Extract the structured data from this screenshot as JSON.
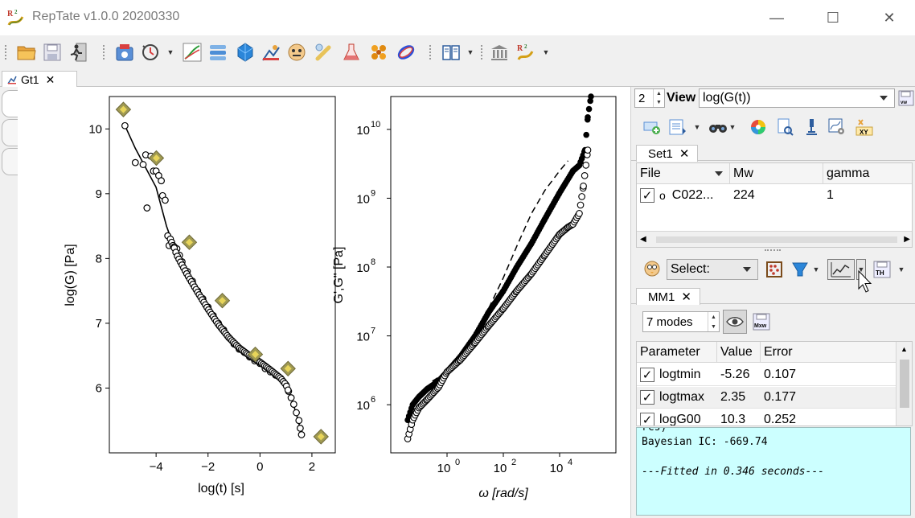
{
  "window": {
    "title": "RepTate v1.0.0 20200330",
    "minimize_glyph": "—",
    "maximize_glyph": "☐",
    "close_glyph": "✕"
  },
  "toolbar": {
    "icons": [
      "open-folder-icon",
      "save-icon",
      "exit-icon",
      "tts-app-icon",
      "reptation-app-icon",
      "lve-app-icon",
      "creep-app-icon",
      "crystal-app-icon",
      "react-app-icon",
      "mask-app-icon",
      "dielectric-app-icon",
      "flask-app-icon",
      "molecule-app-icon",
      "ellipse-app-icon",
      "manual-icon",
      "museum-icon",
      "logo-menu-icon"
    ]
  },
  "main_tab": {
    "label": "Gt1",
    "close": "✕"
  },
  "plots": {
    "left": {
      "xlabel": "log(t) [s]",
      "ylabel": "log(G) [Pa]",
      "xticks": [
        "−4",
        "−2",
        "0",
        "2"
      ],
      "yticks": [
        "6",
        "7",
        "8",
        "9",
        "10"
      ]
    },
    "right": {
      "xlabel": "ω [rad/s]",
      "ylabel": "G',G\" [Pa]",
      "xtick_base": "10",
      "xtick_exp": [
        "0",
        "2",
        "4"
      ],
      "ytick_base": "10",
      "ytick_exp": [
        "6",
        "7",
        "8",
        "9",
        "10"
      ]
    }
  },
  "chart_data": [
    {
      "type": "scatter",
      "title": "",
      "xlabel": "log(t) [s]",
      "ylabel": "log(G) [Pa]",
      "xlim": [
        -5.8,
        2.9
      ],
      "ylim": [
        5.0,
        10.5
      ],
      "grid": false,
      "series": [
        {
          "marker": "open-circle",
          "x": [
            -5.2,
            -4.8,
            -4.5,
            -4.4,
            -4.35,
            -4.2,
            -4.1,
            -4.0,
            -3.9,
            -3.8,
            -3.75,
            -3.65,
            -3.55,
            -3.5,
            -3.45,
            -3.4,
            -3.35,
            -3.3,
            -3.2,
            -3.1,
            -3.0,
            -2.8,
            -2.6,
            -2.4,
            -2.2,
            -2.0,
            -1.8,
            -1.6,
            -1.4,
            -1.2,
            -1.0,
            -0.8,
            -0.6,
            -0.4,
            -0.2,
            0.0,
            0.2,
            0.4,
            0.6,
            0.8,
            1.0,
            1.1,
            1.2,
            1.3,
            1.4,
            1.5,
            1.55,
            1.6
          ],
          "y": [
            10.05,
            9.48,
            9.45,
            9.6,
            8.78,
            9.58,
            9.35,
            9.35,
            9.28,
            9.2,
            8.97,
            8.9,
            8.35,
            8.2,
            8.3,
            8.25,
            8.2,
            8.18,
            8.15,
            8.05,
            7.95,
            7.8,
            7.65,
            7.5,
            7.38,
            7.25,
            7.12,
            7.0,
            6.9,
            6.78,
            6.68,
            6.6,
            6.55,
            6.48,
            6.42,
            6.38,
            6.3,
            6.25,
            6.2,
            6.15,
            6.05,
            5.95,
            5.85,
            5.75,
            5.62,
            5.5,
            5.38,
            5.28
          ]
        },
        {
          "name": "",
          "marker": "line",
          "x": [
            -5.2,
            -4.8,
            -4.4,
            -4.0,
            -3.6,
            -3.2,
            -2.8,
            -2.4,
            -2.0,
            -1.6,
            -1.2,
            -0.8,
            -0.4,
            0.0,
            0.4,
            0.8,
            1.0,
            1.2,
            1.4,
            1.6
          ],
          "y": [
            10.05,
            9.7,
            9.4,
            9.1,
            8.5,
            8.05,
            7.75,
            7.48,
            7.22,
            6.98,
            6.78,
            6.62,
            6.5,
            6.4,
            6.28,
            6.15,
            6.05,
            5.85,
            5.6,
            5.3
          ]
        },
        {
          "marker": "diamond",
          "x": [
            -5.26,
            -3.99,
            -2.72,
            -1.45,
            -0.18,
            1.08,
            2.35
          ],
          "y": [
            10.3,
            9.55,
            8.25,
            7.35,
            6.52,
            6.3,
            5.25
          ]
        }
      ]
    },
    {
      "type": "scatter",
      "title": "",
      "xlabel": "ω [rad/s]",
      "ylabel": "G',G\" [Pa]",
      "xlog": true,
      "ylog": true,
      "xlim": [
        0.01,
        1000000
      ],
      "ylim": [
        200000,
        30000000000
      ],
      "grid": false,
      "series": [
        {
          "marker": "open-circle",
          "x": [
            0.04,
            0.06,
            0.1,
            0.2,
            0.5,
            1,
            3,
            10,
            30,
            100,
            300,
            1000,
            3000,
            10000,
            20000,
            30000,
            50000,
            70000,
            100000
          ],
          "y": [
            320000,
            600000,
            900000,
            1200000,
            1800000,
            3000000,
            4500000,
            8000000,
            14000000,
            25000000,
            45000000,
            80000000,
            150000000,
            300000000,
            380000000,
            420000000,
            600000000,
            1500000000,
            5000000000
          ]
        },
        {
          "marker": "filled-circle",
          "x": [
            0.04,
            0.06,
            0.1,
            0.2,
            0.5,
            1,
            3,
            10,
            30,
            100,
            300,
            1000,
            3000,
            10000,
            30000,
            50000,
            80000,
            100000,
            130000
          ],
          "y": [
            600000,
            1000000,
            1300000,
            1700000,
            2200000,
            3000000,
            5000000,
            10000000,
            22000000,
            45000000,
            100000000,
            220000000,
            500000000,
            1200000000,
            2500000000,
            3000000000,
            5000000000,
            15000000000,
            30000000000
          ]
        },
        {
          "name": "",
          "marker": "dashed-line",
          "x": [
            0.3,
            1,
            3,
            10,
            30,
            100,
            300,
            1000,
            3000,
            10000,
            20000
          ],
          "y": [
            2200000,
            3000000,
            5000000,
            10000000,
            25000000,
            70000000,
            200000000,
            600000000,
            1300000000,
            2500000000,
            3500000000
          ]
        }
      ]
    }
  ],
  "rpanel": {
    "view_count": "2",
    "view_label": "View",
    "view_value": "log(G(t))",
    "set_tab": {
      "label": "Set1",
      "close": "✕"
    },
    "files_table": {
      "headers": [
        "File",
        "Mw",
        "gamma"
      ],
      "rows": [
        {
          "checked": "✓",
          "marker": "o",
          "file": "C022...",
          "mw": "224",
          "gamma": "1"
        }
      ]
    },
    "theory_select": "Select:",
    "theory_tab": {
      "label": "MM1",
      "close": "✕"
    },
    "modes": "7 modes",
    "params_table": {
      "headers": [
        "Parameter",
        "Value",
        "Error"
      ],
      "rows": [
        {
          "checked": "✓",
          "name": "logtmin",
          "value": "-5.26",
          "error": "0.107"
        },
        {
          "checked": "✓",
          "name": "logtmax",
          "value": "2.35",
          "error": "0.177"
        },
        {
          "checked": "✓",
          "name": "logG00",
          "value": "10.3",
          "error": "0.252"
        }
      ]
    },
    "console": {
      "partial_line": "rcs)",
      "bic_line": "Bayesian IC: -669.74",
      "fitted_line": "---Fitted in 0.346 seconds---"
    }
  }
}
